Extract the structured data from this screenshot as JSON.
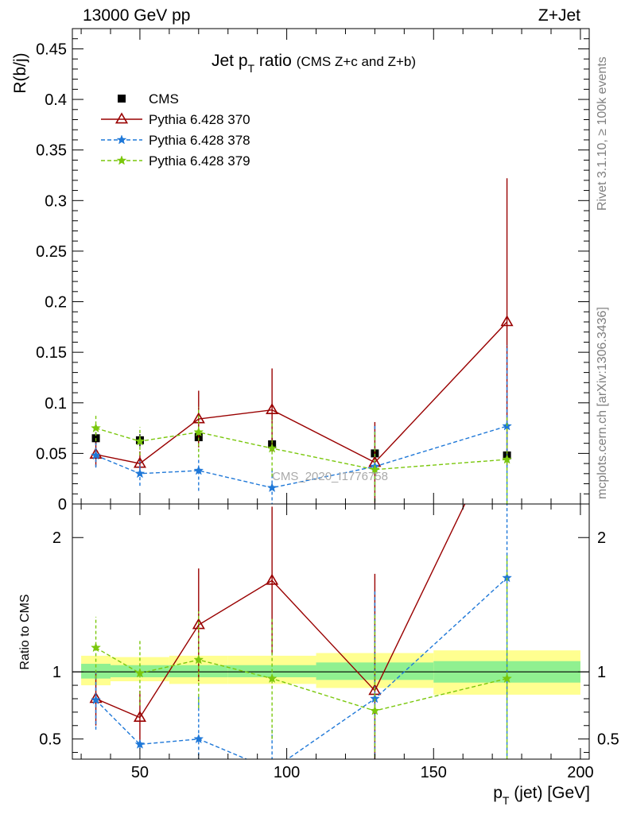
{
  "header": {
    "left": "13000 GeV pp",
    "right": "Z+Jet"
  },
  "side": {
    "rivet": "Rivet 3.1.10, ≥ 100k events",
    "mcplots": "mcplots.cern.ch [arXiv:1306.3436]"
  },
  "watermark": "CMS_2020_I1776758",
  "chart_data": [
    {
      "type": "line",
      "panel": "main",
      "title": "Jet pT ratio (CMS  Z+c and Z+b)",
      "title_main": "Jet p",
      "title_sub": "T",
      "title_rest": " ratio",
      "title_note": "(CMS  Z+c and Z+b)",
      "ylabel": "R(b/j)",
      "xlim": [
        27,
        203
      ],
      "ylim": [
        0,
        0.47
      ],
      "yticks": [
        0,
        0.05,
        0.1,
        0.15,
        0.2,
        0.25,
        0.3,
        0.35,
        0.4,
        0.45
      ],
      "ytick_labels": [
        "0",
        "0.05",
        "0.1",
        "0.15",
        "0.2",
        "0.25",
        "0.3",
        "0.35",
        "0.4",
        "0.45"
      ],
      "legend_position": "top-left",
      "x": [
        35,
        50,
        70,
        95,
        130,
        175
      ],
      "series": [
        {
          "name": "CMS",
          "color": "#000000",
          "marker": "square",
          "style": "points",
          "values": [
            0.065,
            0.063,
            0.066,
            0.059,
            0.05,
            0.048
          ],
          "errors": [
            0.006,
            0.006,
            0.006,
            0.006,
            0.006,
            0.006
          ]
        },
        {
          "name": "Pythia 6.428 370",
          "color": "#990000",
          "marker": "triangle-open",
          "style": "solid",
          "values": [
            0.049,
            0.04,
            0.084,
            0.093,
            0.041,
            0.18
          ],
          "errors": [
            0.012,
            0.012,
            0.028,
            0.041,
            0.04,
            0.142
          ]
        },
        {
          "name": "Pythia 6.428 378",
          "color": "#1f78d8",
          "marker": "star",
          "style": "dashed",
          "values": [
            0.048,
            0.03,
            0.033,
            0.016,
            0.037,
            0.077
          ],
          "errors": [
            0.012,
            0.012,
            0.02,
            0.018,
            0.04,
            0.08
          ]
        },
        {
          "name": "Pythia 6.428 379",
          "color": "#7ac70c",
          "marker": "star",
          "style": "dashed",
          "values": [
            0.075,
            0.062,
            0.071,
            0.055,
            0.034,
            0.044
          ],
          "errors": [
            0.013,
            0.014,
            0.025,
            0.028,
            0.037,
            0.044
          ]
        }
      ]
    },
    {
      "type": "line",
      "panel": "ratio",
      "ylabel": "Ratio to CMS",
      "xlabel": "pT (jet) [GeV]",
      "xlabel_main": "p",
      "xlabel_sub": "T",
      "xlabel_rest": " (jet) [GeV]",
      "xlim": [
        27,
        203
      ],
      "ylim": [
        0.35,
        2.25
      ],
      "yticks": [
        0.5,
        1,
        2
      ],
      "ytick_labels": [
        "0.5",
        "1",
        "2"
      ],
      "xticks": [
        50,
        100,
        150,
        200
      ],
      "xtick_labels": [
        "50",
        "100",
        "150",
        "200"
      ],
      "bands": {
        "edges": [
          30,
          40,
          60,
          80,
          110,
          150,
          200
        ],
        "inner": [
          [
            0.95,
            1.06
          ],
          [
            0.96,
            1.05
          ],
          [
            0.96,
            1.05
          ],
          [
            0.96,
            1.05
          ],
          [
            0.94,
            1.07
          ],
          [
            0.92,
            1.08
          ]
        ],
        "outer": [
          [
            0.9,
            1.12
          ],
          [
            0.93,
            1.11
          ],
          [
            0.91,
            1.12
          ],
          [
            0.91,
            1.12
          ],
          [
            0.88,
            1.14
          ],
          [
            0.83,
            1.16
          ]
        ],
        "inner_color": "#90f090",
        "outer_color": "#ffff90"
      },
      "x": [
        35,
        50,
        70,
        95,
        130,
        175
      ],
      "series": [
        {
          "name": "Pythia 6.428 370",
          "color": "#990000",
          "marker": "triangle-open",
          "style": "solid",
          "values": [
            0.8,
            0.66,
            1.35,
            1.68,
            0.86,
            2.9
          ],
          "errors": [
            0.2,
            0.2,
            0.42,
            0.55,
            0.87,
            0.0
          ]
        },
        {
          "name": "Pythia 6.428 378",
          "color": "#1f78d8",
          "marker": "star",
          "style": "dashed",
          "values": [
            0.79,
            0.46,
            0.5,
            0.27,
            0.8,
            1.7
          ],
          "errors": [
            0.22,
            0.03,
            0.33,
            0.3,
            0.8,
            1.7
          ]
        },
        {
          "name": "Pythia 6.428 379",
          "color": "#7ac70c",
          "marker": "star",
          "style": "dashed",
          "values": [
            1.18,
            0.99,
            1.09,
            0.95,
            0.71,
            0.95
          ],
          "errors": [
            0.23,
            0.24,
            0.36,
            0.45,
            0.72,
            0.93
          ]
        }
      ]
    }
  ]
}
